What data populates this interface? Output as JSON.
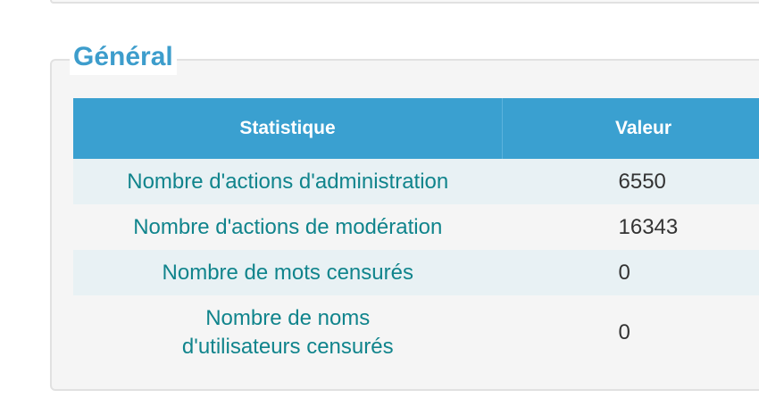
{
  "section": {
    "title": "Général"
  },
  "table": {
    "headers": [
      "Statistique",
      "Valeur"
    ],
    "rows": [
      {
        "label": "Nombre d'actions d'administration",
        "value": "6550"
      },
      {
        "label": "Nombre d'actions de modération",
        "value": "16343"
      },
      {
        "label": "Nombre de mots censurés",
        "value": "0"
      },
      {
        "label": "Nombre de noms d'utilisateurs censurés",
        "value": "0"
      }
    ]
  },
  "colors": {
    "accent": "#3aa0d0",
    "label_text": "#10848c",
    "legend_text": "#3d9dcc",
    "row_stripe": "#e8f1f4"
  }
}
